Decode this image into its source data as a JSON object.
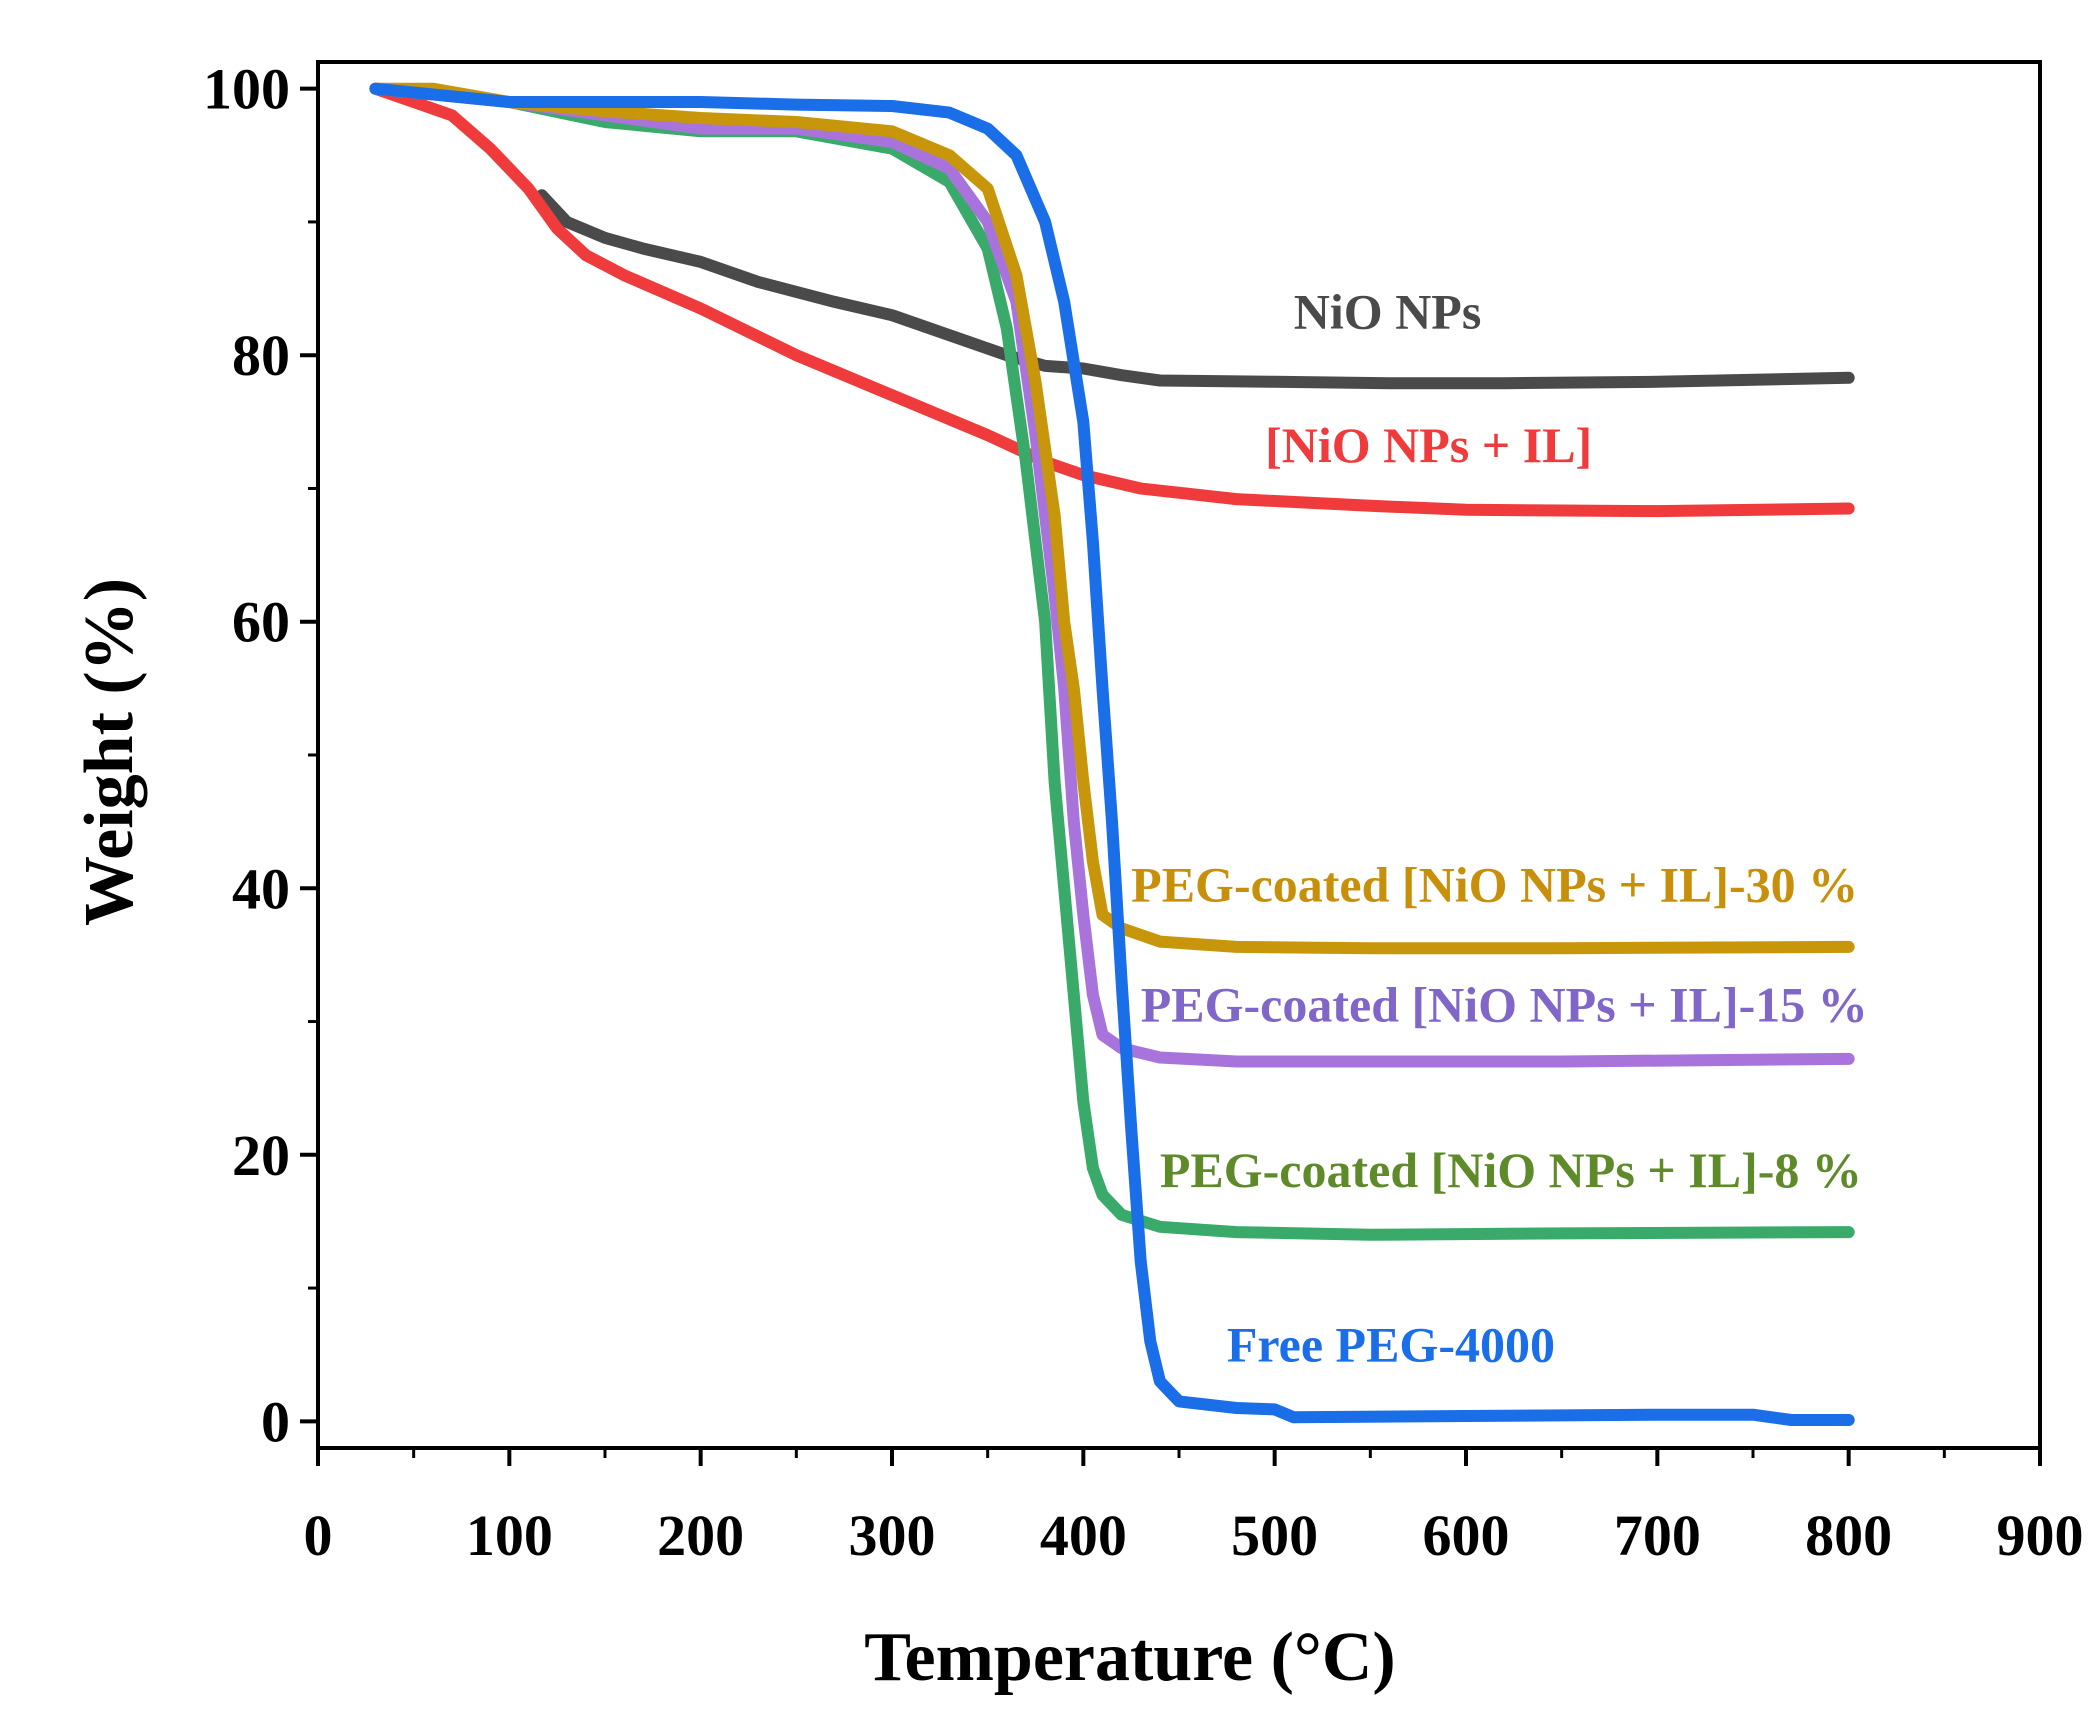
{
  "chart_data": {
    "type": "line",
    "title": "",
    "xlabel": "Temperature (°C)",
    "ylabel": "Weight (%)",
    "xlim": [
      0,
      900
    ],
    "ylim": [
      -2,
      102
    ],
    "xticks": [
      0,
      100,
      200,
      300,
      400,
      500,
      600,
      700,
      800,
      900
    ],
    "yticks": [
      0,
      20,
      40,
      60,
      80,
      100
    ],
    "grid": false,
    "legend": "inline labels next to curves",
    "series": [
      {
        "name": "NiO NPs",
        "label": "NiO NPs",
        "color": "#4a4a4a",
        "x": [
          117,
          130,
          150,
          170,
          200,
          230,
          270,
          300,
          330,
          360,
          380,
          400,
          420,
          440,
          500,
          560,
          620,
          700,
          800
        ],
        "y": [
          92,
          90,
          88.8,
          88,
          87,
          85.5,
          84,
          83,
          81.5,
          80,
          79.2,
          79,
          78.5,
          78.1,
          78,
          77.9,
          77.9,
          78,
          78.3
        ]
      },
      {
        "name": "[NiO NPs + IL]",
        "label": "[NiO NPs + IL]",
        "color": "#ef3b3b",
        "x": [
          30,
          50,
          70,
          90,
          110,
          125,
          140,
          160,
          200,
          250,
          300,
          350,
          380,
          400,
          430,
          480,
          550,
          600,
          700,
          800
        ],
        "y": [
          100,
          99,
          98,
          95.5,
          92.5,
          89.5,
          87.5,
          86,
          83.5,
          80,
          77,
          74,
          72,
          71,
          70,
          69.2,
          68.7,
          68.4,
          68.3,
          68.5
        ]
      },
      {
        "name": "PEG-coated [NiO NPs + IL]-8 %",
        "label": "PEG-coated [NiO NPs + IL]-8 %",
        "label_color": "#5e8a2a",
        "color": "#3aaa6a",
        "x": [
          30,
          100,
          150,
          200,
          250,
          300,
          330,
          350,
          360,
          370,
          380,
          385,
          390,
          395,
          400,
          405,
          410,
          420,
          440,
          480,
          550,
          650,
          800
        ],
        "y": [
          100,
          99,
          97.5,
          96.8,
          96.8,
          95.5,
          93,
          88,
          82,
          72,
          60,
          48,
          40,
          32,
          24,
          19,
          17,
          15.5,
          14.6,
          14.2,
          14,
          14.1,
          14.2
        ]
      },
      {
        "name": "PEG-coated [NiO NPs + IL]-15 %",
        "label": "PEG-coated [NiO NPs + IL]-15 %",
        "label_color": "#8066c8",
        "color": "#a874dc",
        "x": [
          30,
          100,
          150,
          200,
          250,
          300,
          330,
          350,
          365,
          375,
          385,
          390,
          395,
          400,
          405,
          410,
          420,
          440,
          480,
          550,
          650,
          800
        ],
        "y": [
          100,
          99,
          98,
          97,
          97,
          96,
          94,
          90,
          84,
          74,
          62,
          55,
          45,
          38,
          32,
          29,
          28,
          27.3,
          27,
          27,
          27,
          27.2
        ]
      },
      {
        "name": "PEG-coated [NiO NPs + IL]-30 %",
        "label": "PEG-coated [NiO NPs + IL]-30 %",
        "label_color": "#c8900a",
        "color": "#c8960a",
        "x": [
          30,
          60,
          100,
          150,
          200,
          250,
          300,
          330,
          350,
          365,
          375,
          385,
          390,
          395,
          400,
          405,
          410,
          420,
          440,
          480,
          550,
          650,
          800
        ],
        "y": [
          100,
          100,
          99,
          98.3,
          97.8,
          97.5,
          96.8,
          95,
          92.5,
          86,
          78,
          68,
          60,
          55,
          48,
          42,
          38,
          37,
          36,
          35.6,
          35.5,
          35.5,
          35.6
        ]
      },
      {
        "name": "Free PEG-4000",
        "label": "Free PEG-4000",
        "color": "#1a6ee8",
        "x": [
          30,
          100,
          200,
          250,
          300,
          330,
          350,
          365,
          380,
          390,
          400,
          405,
          410,
          415,
          420,
          425,
          430,
          435,
          440,
          450,
          480,
          500,
          510,
          600,
          700,
          750,
          770,
          800
        ],
        "y": [
          100,
          99,
          99,
          98.8,
          98.7,
          98.2,
          97,
          95,
          90,
          84,
          75,
          66,
          55,
          45,
          33,
          22,
          12,
          6,
          3,
          1.5,
          1,
          0.9,
          0.3,
          0.4,
          0.5,
          0.5,
          0.1,
          0.1
        ]
      }
    ]
  }
}
